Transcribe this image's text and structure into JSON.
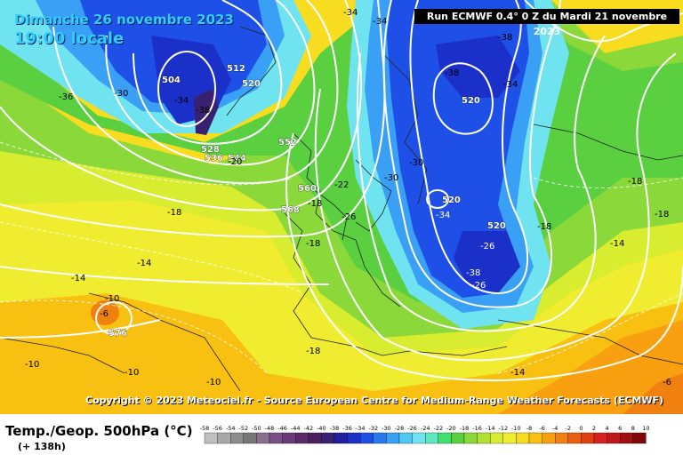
{
  "header": {
    "date_line": "Dimanche 26 novembre 2023",
    "time_line": "19:00 locale",
    "run_line": "Run ECMWF 0.4° 0 Z du Mardi 21 novembre 2023"
  },
  "copyright": "Copyright © 2023 Meteociel.fr - Source European Centre for Medium-Range Weather Forecasts (ECMWF)",
  "footer": {
    "title": "Temp./Geop. 500hPa (°C)",
    "lead_time": "(+ 138h)"
  },
  "legend": {
    "values": [
      "-58",
      "-56",
      "-54",
      "-52",
      "-50",
      "-48",
      "-46",
      "-44",
      "-42",
      "-40",
      "-38",
      "-36",
      "-34",
      "-32",
      "-30",
      "-28",
      "-26",
      "-24",
      "-22",
      "-20",
      "-18",
      "-16",
      "-14",
      "-12",
      "-10",
      "-8",
      "-6",
      "-4",
      "-2",
      "0",
      "2",
      "4",
      "6",
      "8",
      "10"
    ],
    "colors": [
      "#bfbfbf",
      "#a8a8a8",
      "#8e8e8e",
      "#777777",
      "#8a6f8f",
      "#7a4f86",
      "#6a3a7a",
      "#5a2a6a",
      "#4a1f5e",
      "#3a2070",
      "#1f1fa0",
      "#1a30c8",
      "#1e50e8",
      "#2a78f0",
      "#3aa0f5",
      "#4fc8f5",
      "#6fe4f0",
      "#5fe8c0",
      "#40e070",
      "#5ad040",
      "#8ad83a",
      "#b0e030",
      "#d8ec30",
      "#f0ec30",
      "#f8dc20",
      "#f8c010",
      "#f8a010",
      "#f08010",
      "#e86010",
      "#e04010",
      "#d82020",
      "#c01818",
      "#a01010",
      "#800808",
      "#500000"
    ]
  },
  "map_labels": {
    "geopotential": [
      "504",
      "512",
      "520",
      "528",
      "536",
      "544",
      "552",
      "560",
      "568",
      "576",
      "520",
      "520",
      "520"
    ],
    "temperature": [
      "-30",
      "-34",
      "-38",
      "-36",
      "-34",
      "-34",
      "-38",
      "-38",
      "-34",
      "-30",
      "-30",
      "-26",
      "-22",
      "-20",
      "-18",
      "-18",
      "-18",
      "-18",
      "-18",
      "-18",
      "-14",
      "-14",
      "-14",
      "-14",
      "-10",
      "-10",
      "-10",
      "-10",
      "-6",
      "-6",
      "-18",
      "-34",
      "-26",
      "-38",
      "-26"
    ]
  }
}
